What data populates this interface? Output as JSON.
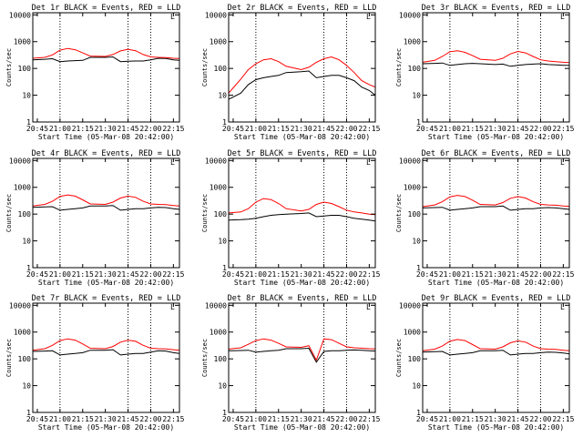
{
  "layout": {
    "rows": 3,
    "cols": 3
  },
  "colors": {
    "events": "#000000",
    "lld": "#ff0000",
    "axis": "#000000",
    "background": "#ffffff"
  },
  "common": {
    "xlabel": "Start Time (05-Mar-08 20:42:00)",
    "ylabel": "Counts/sec",
    "x_tick_labels": [
      "20:45",
      "21:00",
      "21:15",
      "21:30",
      "21:45",
      "22:00",
      "22:15"
    ],
    "y_tick_labels": [
      "1",
      "10",
      "100",
      "1000",
      "10000"
    ],
    "dotted_vlines": [
      "21:00",
      "21:45",
      "22:00"
    ],
    "top_marker": "L",
    "xlim": [
      "20:42",
      "22:19"
    ],
    "ylim": [
      1,
      12000
    ]
  },
  "chart_data": [
    {
      "type": "line",
      "title": "Det 1r BLACK = Events, RED = LLD",
      "xlabel": "Start Time (05-Mar-08 20:42:00)",
      "ylabel": "Counts/sec",
      "yscale": "log",
      "x": [
        "20:42",
        "20:50",
        "20:55",
        "21:00",
        "21:05",
        "21:10",
        "21:15",
        "21:20",
        "21:30",
        "21:35",
        "21:40",
        "21:45",
        "21:50",
        "21:55",
        "22:00",
        "22:05",
        "22:10",
        "22:15",
        "22:19"
      ],
      "series": [
        {
          "name": "Events",
          "color": "#000000",
          "values": [
            210,
            220,
            230,
            180,
            190,
            195,
            200,
            260,
            260,
            270,
            180,
            185,
            190,
            190,
            210,
            240,
            235,
            210,
            200
          ]
        },
        {
          "name": "LLD",
          "color": "#ff0000",
          "values": [
            240,
            260,
            320,
            480,
            560,
            500,
            380,
            290,
            280,
            330,
            450,
            520,
            460,
            330,
            270,
            260,
            255,
            240,
            235
          ]
        }
      ]
    },
    {
      "type": "line",
      "title": "Det 2r BLACK = Events, RED = LLD",
      "xlabel": "Start Time (05-Mar-08 20:42:00)",
      "ylabel": "Counts/sec",
      "yscale": "log",
      "x": [
        "20:42",
        "20:50",
        "20:55",
        "21:00",
        "21:05",
        "21:10",
        "21:15",
        "21:20",
        "21:30",
        "21:35",
        "21:40",
        "21:45",
        "21:50",
        "21:55",
        "22:00",
        "22:05",
        "22:10",
        "22:15",
        "22:19"
      ],
      "series": [
        {
          "name": "Events",
          "color": "#000000",
          "values": [
            7,
            12,
            25,
            38,
            45,
            50,
            55,
            70,
            75,
            80,
            45,
            50,
            55,
            55,
            45,
            35,
            20,
            15,
            10
          ]
        },
        {
          "name": "LLD",
          "color": "#ff0000",
          "values": [
            12,
            40,
            90,
            150,
            210,
            230,
            180,
            120,
            90,
            110,
            170,
            230,
            270,
            210,
            130,
            70,
            35,
            25,
            20
          ]
        }
      ]
    },
    {
      "type": "line",
      "title": "Det 3r BLACK = Events, RED = LLD",
      "xlabel": "Start Time (05-Mar-08 20:42:00)",
      "ylabel": "Counts/sec",
      "yscale": "log",
      "x": [
        "20:42",
        "20:50",
        "20:55",
        "21:00",
        "21:05",
        "21:10",
        "21:15",
        "21:20",
        "21:30",
        "21:35",
        "21:40",
        "21:45",
        "21:50",
        "21:55",
        "22:00",
        "22:05",
        "22:10",
        "22:15",
        "22:19"
      ],
      "series": [
        {
          "name": "Events",
          "color": "#000000",
          "values": [
            150,
            155,
            160,
            130,
            140,
            150,
            155,
            150,
            140,
            145,
            120,
            130,
            140,
            145,
            150,
            140,
            135,
            130,
            130
          ]
        },
        {
          "name": "LLD",
          "color": "#ff0000",
          "values": [
            170,
            200,
            280,
            420,
            460,
            400,
            300,
            220,
            200,
            240,
            350,
            430,
            380,
            280,
            210,
            190,
            180,
            170,
            165
          ]
        }
      ]
    },
    {
      "type": "line",
      "title": "Det 4r BLACK = Events, RED = LLD",
      "xlabel": "Start Time (05-Mar-08 20:42:00)",
      "ylabel": "Counts/sec",
      "yscale": "log",
      "x": [
        "20:42",
        "20:50",
        "20:55",
        "21:00",
        "21:05",
        "21:10",
        "21:15",
        "21:20",
        "21:30",
        "21:35",
        "21:40",
        "21:45",
        "21:50",
        "21:55",
        "22:00",
        "22:05",
        "22:10",
        "22:15",
        "22:19"
      ],
      "series": [
        {
          "name": "Events",
          "color": "#000000",
          "values": [
            180,
            185,
            190,
            140,
            150,
            160,
            170,
            200,
            200,
            210,
            140,
            150,
            160,
            160,
            170,
            180,
            175,
            160,
            150
          ]
        },
        {
          "name": "LLD",
          "color": "#ff0000",
          "values": [
            200,
            230,
            300,
            460,
            520,
            470,
            340,
            240,
            230,
            280,
            400,
            470,
            420,
            300,
            240,
            230,
            225,
            210,
            200
          ]
        }
      ]
    },
    {
      "type": "line",
      "title": "Det 5r BLACK = Events, RED = LLD",
      "xlabel": "Start Time (05-Mar-08 20:42:00)",
      "ylabel": "Counts/sec",
      "yscale": "log",
      "x": [
        "20:42",
        "20:50",
        "20:55",
        "21:00",
        "21:05",
        "21:10",
        "21:15",
        "21:20",
        "21:30",
        "21:35",
        "21:40",
        "21:45",
        "21:50",
        "21:55",
        "22:00",
        "22:05",
        "22:10",
        "22:15",
        "22:19"
      ],
      "series": [
        {
          "name": "Events",
          "color": "#000000",
          "values": [
            60,
            62,
            65,
            70,
            80,
            90,
            95,
            100,
            105,
            110,
            80,
            85,
            90,
            90,
            80,
            70,
            65,
            60,
            55
          ]
        },
        {
          "name": "LLD",
          "color": "#ff0000",
          "values": [
            110,
            120,
            160,
            280,
            380,
            350,
            250,
            160,
            130,
            150,
            230,
            280,
            250,
            190,
            140,
            120,
            110,
            100,
            95
          ]
        }
      ]
    },
    {
      "type": "line",
      "title": "Det 6r BLACK = Events, RED = LLD",
      "xlabel": "Start Time (05-Mar-08 20:42:00)",
      "ylabel": "Counts/sec",
      "yscale": "log",
      "x": [
        "20:42",
        "20:50",
        "20:55",
        "21:00",
        "21:05",
        "21:10",
        "21:15",
        "21:20",
        "21:30",
        "21:35",
        "21:40",
        "21:45",
        "21:50",
        "21:55",
        "22:00",
        "22:05",
        "22:10",
        "22:15",
        "22:19"
      ],
      "series": [
        {
          "name": "Events",
          "color": "#000000",
          "values": [
            170,
            175,
            180,
            140,
            150,
            160,
            170,
            190,
            190,
            200,
            140,
            150,
            160,
            160,
            170,
            175,
            170,
            160,
            150
          ]
        },
        {
          "name": "LLD",
          "color": "#ff0000",
          "values": [
            190,
            220,
            290,
            440,
            500,
            450,
            330,
            230,
            220,
            270,
            390,
            450,
            400,
            290,
            230,
            220,
            215,
            200,
            195
          ]
        }
      ]
    },
    {
      "type": "line",
      "title": "Det 7r BLACK = Events, RED = LLD",
      "xlabel": "Start Time (05-Mar-08 20:42:00)",
      "ylabel": "Counts/sec",
      "yscale": "log",
      "x": [
        "20:42",
        "20:50",
        "20:55",
        "21:00",
        "21:05",
        "21:10",
        "21:15",
        "21:20",
        "21:30",
        "21:35",
        "21:40",
        "21:45",
        "21:50",
        "21:55",
        "22:00",
        "22:05",
        "22:10",
        "22:15",
        "22:19"
      ],
      "series": [
        {
          "name": "Events",
          "color": "#000000",
          "values": [
            190,
            195,
            200,
            140,
            150,
            160,
            170,
            210,
            210,
            220,
            140,
            150,
            160,
            160,
            180,
            200,
            195,
            170,
            160
          ]
        },
        {
          "name": "LLD",
          "color": "#ff0000",
          "values": [
            210,
            240,
            320,
            480,
            560,
            500,
            360,
            250,
            240,
            290,
            420,
            500,
            450,
            320,
            250,
            240,
            235,
            220,
            210
          ]
        }
      ]
    },
    {
      "type": "line",
      "title": "Det 8r BLACK = Events, RED = LLD",
      "xlabel": "Start Time (05-Mar-08 20:42:00)",
      "ylabel": "Counts/sec",
      "yscale": "log",
      "x": [
        "20:42",
        "20:50",
        "20:55",
        "21:00",
        "21:05",
        "21:10",
        "21:15",
        "21:20",
        "21:30",
        "21:35",
        "21:40",
        "21:45",
        "21:50",
        "21:55",
        "22:00",
        "22:05",
        "22:10",
        "22:15",
        "22:19"
      ],
      "series": [
        {
          "name": "Events",
          "color": "#000000",
          "values": [
            200,
            205,
            210,
            180,
            190,
            200,
            210,
            240,
            240,
            250,
            75,
            190,
            200,
            200,
            210,
            215,
            210,
            200,
            195
          ]
        },
        {
          "name": "LLD",
          "color": "#ff0000",
          "values": [
            230,
            260,
            350,
            480,
            560,
            500,
            380,
            280,
            270,
            310,
            90,
            560,
            520,
            380,
            280,
            260,
            250,
            240,
            235
          ]
        }
      ]
    },
    {
      "type": "line",
      "title": "Det 9r BLACK = Events, RED = LLD",
      "xlabel": "Start Time (05-Mar-08 20:42:00)",
      "ylabel": "Counts/sec",
      "yscale": "log",
      "x": [
        "20:42",
        "20:50",
        "20:55",
        "21:00",
        "21:05",
        "21:10",
        "21:15",
        "21:20",
        "21:30",
        "21:35",
        "21:40",
        "21:45",
        "21:50",
        "21:55",
        "22:00",
        "22:05",
        "22:10",
        "22:15",
        "22:19"
      ],
      "series": [
        {
          "name": "Events",
          "color": "#000000",
          "values": [
            180,
            185,
            190,
            140,
            150,
            160,
            170,
            200,
            200,
            210,
            140,
            150,
            160,
            160,
            170,
            180,
            175,
            165,
            155
          ]
        },
        {
          "name": "LLD",
          "color": "#ff0000",
          "values": [
            200,
            230,
            300,
            460,
            530,
            480,
            340,
            240,
            230,
            280,
            400,
            470,
            420,
            300,
            240,
            230,
            225,
            210,
            200
          ]
        }
      ]
    }
  ]
}
